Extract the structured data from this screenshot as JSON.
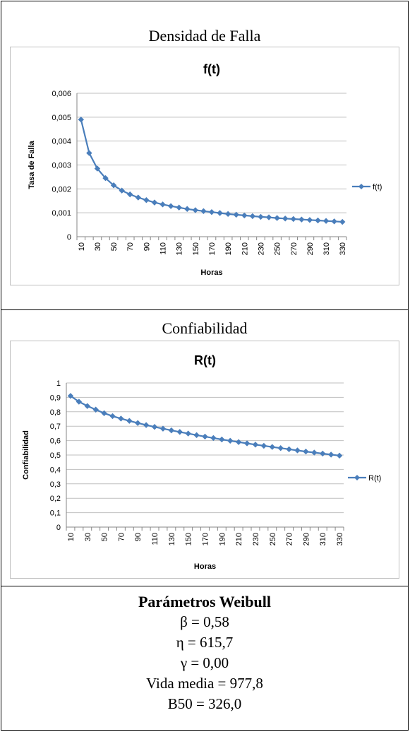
{
  "sections": {
    "density_title": "Densidad de Falla",
    "reliability_title": "Confiabilidad"
  },
  "colors": {
    "series": "#4a7ebb",
    "grid": "#bfbfbf",
    "axis": "#868686"
  },
  "chart_data": [
    {
      "type": "line",
      "title": "f(t)",
      "xlabel": "Horas",
      "ylabel": "Tasa de Falla",
      "legend_position": "right",
      "grid": true,
      "ylim": [
        0,
        0.006
      ],
      "yticks": [
        "0",
        "0,001",
        "0,002",
        "0,003",
        "0,004",
        "0,005",
        "0,006"
      ],
      "xtick_labels": [
        "10",
        "30",
        "50",
        "70",
        "90",
        "110",
        "130",
        "150",
        "170",
        "190",
        "210",
        "230",
        "250",
        "270",
        "290",
        "310",
        "330"
      ],
      "x": [
        10,
        20,
        30,
        40,
        50,
        60,
        70,
        80,
        90,
        100,
        110,
        120,
        130,
        140,
        150,
        160,
        170,
        180,
        190,
        200,
        210,
        220,
        230,
        240,
        250,
        260,
        270,
        280,
        290,
        300,
        310,
        320,
        330
      ],
      "series": [
        {
          "name": "f(t)",
          "values": [
            0.0049,
            0.0035,
            0.00285,
            0.00245,
            0.00215,
            0.00193,
            0.00177,
            0.00164,
            0.00153,
            0.00143,
            0.00135,
            0.00128,
            0.00122,
            0.00116,
            0.00111,
            0.00107,
            0.00103,
            0.00099,
            0.00095,
            0.00092,
            0.00089,
            0.00086,
            0.00083,
            0.00081,
            0.00078,
            0.00076,
            0.00074,
            0.00072,
            0.0007,
            0.00068,
            0.00066,
            0.00064,
            0.00062
          ]
        }
      ]
    },
    {
      "type": "line",
      "title": "R(t)",
      "xlabel": "Horas",
      "ylabel": "Confiabilidad",
      "legend_position": "right",
      "grid": true,
      "ylim": [
        0,
        1
      ],
      "yticks": [
        "0",
        "0,1",
        "0,2",
        "0,3",
        "0,4",
        "0,5",
        "0,6",
        "0,7",
        "0,8",
        "0,9",
        "1"
      ],
      "xtick_labels": [
        "10",
        "30",
        "50",
        "70",
        "90",
        "110",
        "130",
        "150",
        "170",
        "190",
        "210",
        "230",
        "250",
        "270",
        "290",
        "310",
        "330"
      ],
      "x": [
        10,
        20,
        30,
        40,
        50,
        60,
        70,
        80,
        90,
        100,
        110,
        120,
        130,
        140,
        150,
        160,
        170,
        180,
        190,
        200,
        210,
        220,
        230,
        240,
        250,
        260,
        270,
        280,
        290,
        300,
        310,
        320,
        330
      ],
      "series": [
        {
          "name": "R(t)",
          "values": [
            0.91,
            0.87,
            0.84,
            0.815,
            0.79,
            0.77,
            0.753,
            0.737,
            0.722,
            0.708,
            0.695,
            0.683,
            0.671,
            0.66,
            0.649,
            0.638,
            0.628,
            0.618,
            0.608,
            0.599,
            0.59,
            0.581,
            0.572,
            0.564,
            0.556,
            0.548,
            0.54,
            0.532,
            0.524,
            0.517,
            0.51,
            0.503,
            0.496
          ]
        }
      ]
    }
  ],
  "params": {
    "title": "Parámetros Weibull",
    "lines": [
      "β = 0,58",
      "η = 615,7",
      "γ = 0,00",
      "Vida media = 977,8",
      "B50 = 326,0"
    ]
  }
}
